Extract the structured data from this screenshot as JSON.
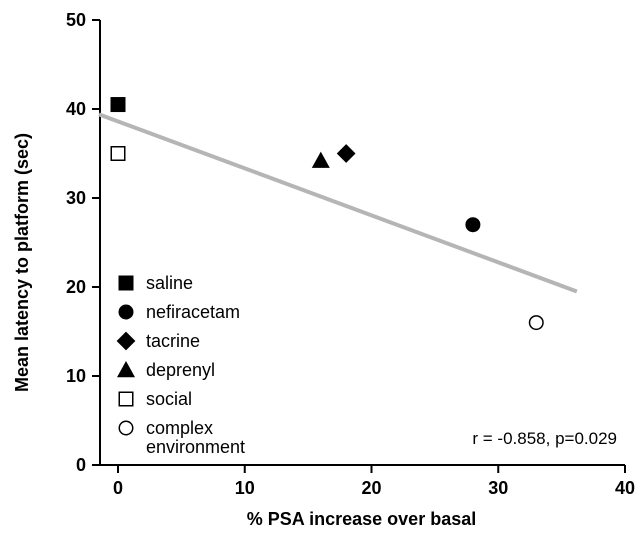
{
  "chart_data": {
    "type": "scatter",
    "xlabel": "% PSA increase over basal",
    "ylabel": "Mean latency to platform (sec)",
    "xlim": [
      -1.5,
      40
    ],
    "ylim": [
      0,
      50
    ],
    "xticks": [
      0,
      10,
      20,
      30,
      40
    ],
    "yticks": [
      0,
      10,
      20,
      30,
      40,
      50
    ],
    "grid": false,
    "legend_position": "bottom-left",
    "series": [
      {
        "name": "saline",
        "marker": "square-filled",
        "points": [
          [
            0,
            40.5
          ]
        ]
      },
      {
        "name": "nefiracetam",
        "marker": "circle-filled",
        "points": [
          [
            28,
            27
          ]
        ]
      },
      {
        "name": "tacrine",
        "marker": "diamond-filled",
        "points": [
          [
            18,
            35
          ]
        ]
      },
      {
        "name": "deprenyl",
        "marker": "triangle-filled",
        "points": [
          [
            16,
            34.2
          ]
        ]
      },
      {
        "name": "social",
        "marker": "square-open",
        "points": [
          [
            0,
            35
          ]
        ]
      },
      {
        "name": "complex environment",
        "legend_lines": [
          "complex",
          "environment"
        ],
        "marker": "circle-open",
        "points": [
          [
            33,
            16
          ]
        ]
      }
    ],
    "regression_line": {
      "x": [
        -1.5,
        36.2
      ],
      "y": [
        39.4,
        19.5
      ],
      "color": "#b5b5b5"
    },
    "annotation": "r = -0.858, p=0.029"
  }
}
